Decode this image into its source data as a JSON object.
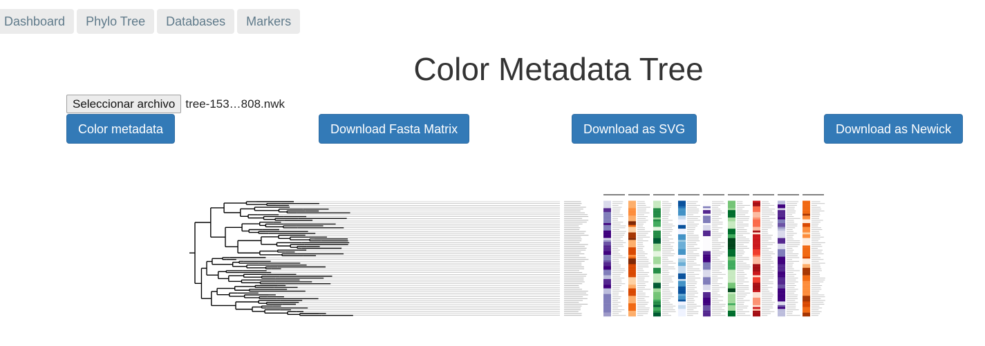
{
  "nav": {
    "tabs": [
      {
        "label": "Dashboard"
      },
      {
        "label": "Phylo Tree"
      },
      {
        "label": "Databases"
      },
      {
        "label": "Markers"
      }
    ]
  },
  "page": {
    "title": "Color Metadata Tree"
  },
  "file_input": {
    "button_label": "Seleccionar archivo",
    "file_name": "tree-153…808.nwk"
  },
  "actions": {
    "color_metadata": "Color metadata",
    "download_fasta": "Download Fasta Matrix",
    "download_svg": "Download as SVG",
    "download_newick": "Download as Newick"
  },
  "figure": {
    "tip_count": 62,
    "metadata_columns": [
      {
        "palette": "purples",
        "colors": [
          "#3f007d",
          "#54278f",
          "#6a51a3",
          "#807dba",
          "#9e9ac8",
          "#bcbddc",
          "#dadaeb"
        ]
      },
      {
        "palette": "oranges",
        "colors": [
          "#7f2704",
          "#a63603",
          "#d94801",
          "#f16913",
          "#fd8d3c",
          "#fdae6b",
          "#fdd0a2"
        ]
      },
      {
        "palette": "greens",
        "colors": [
          "#005a32",
          "#238b45",
          "#41ab5d",
          "#74c476",
          "#a1d99b",
          "#c7e9c0",
          "#e5f5e0"
        ]
      },
      {
        "palette": "blues",
        "colors": [
          "#08519c",
          "#2171b5",
          "#4292c6",
          "#6baed6",
          "#9ecae1",
          "#c6dbef",
          "#eff3ff"
        ]
      },
      {
        "palette": "deep-purples",
        "colors": [
          "#3f007d",
          "#54278f",
          "#6a51a3",
          "#807dba",
          "#9e9ac8",
          "#dadaeb",
          "#fcfbfd"
        ]
      },
      {
        "palette": "dark-greens",
        "colors": [
          "#00441b",
          "#006d2c",
          "#238b45",
          "#41ab5d",
          "#74c476",
          "#a1d99b",
          "#c7e9c0"
        ]
      },
      {
        "palette": "reds",
        "colors": [
          "#a50f15",
          "#cb181d",
          "#ef3b2c",
          "#fb6a4a",
          "#fc9272",
          "#fcbba1",
          "#fee0d2"
        ]
      },
      {
        "palette": "violets",
        "colors": [
          "#3f007d",
          "#54278f",
          "#6a51a3",
          "#807dba",
          "#9e9ac8",
          "#bcbddc",
          "#dadaeb"
        ]
      },
      {
        "palette": "light-oranges",
        "colors": [
          "#a63603",
          "#d94801",
          "#f16913",
          "#fd8d3c",
          "#fdae6b",
          "#fdd0a2",
          "#feedde"
        ]
      }
    ]
  }
}
